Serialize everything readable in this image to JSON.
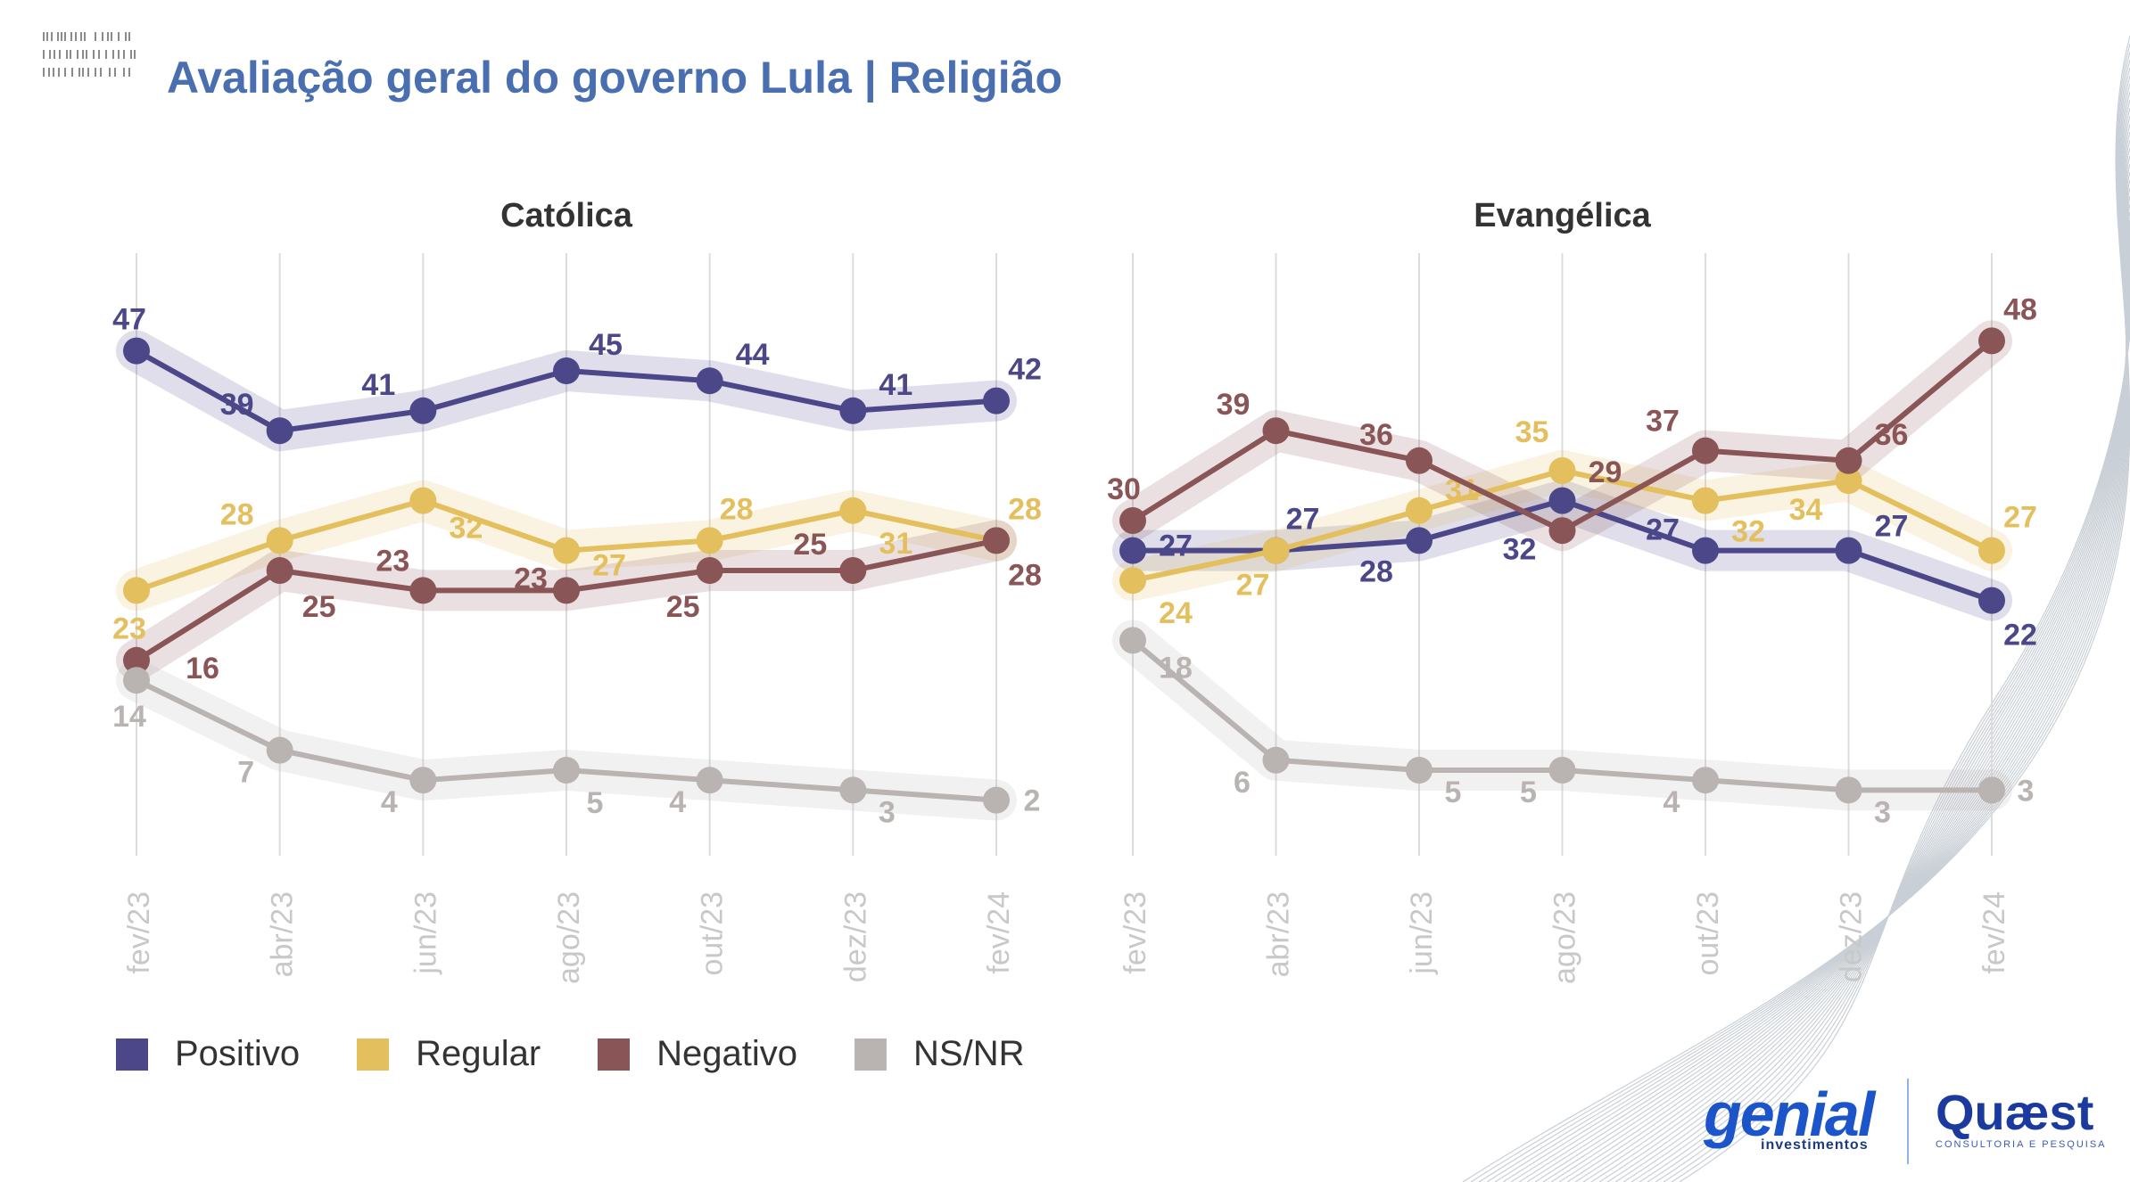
{
  "title": "Avaliação geral do governo Lula | Religião",
  "colors": {
    "positivo": "#4b4789",
    "regular": "#e3bf5e",
    "negativo": "#8a5557",
    "nsnr": "#b9b3b2",
    "title": "#4a6fb0"
  },
  "legend": [
    {
      "label": "Positivo",
      "color": "#4b4789"
    },
    {
      "label": "Regular",
      "color": "#e3bf5e"
    },
    {
      "label": "Negativo",
      "color": "#8a5557"
    },
    {
      "label": "NS/NR",
      "color": "#b9b3b2"
    }
  ],
  "logos": {
    "genial": "genial",
    "genial_sub": "investimentos",
    "quaest": "Quæst",
    "quaest_sub": "CONSULTORIA E PESQUISA"
  },
  "chart_data": [
    {
      "type": "line",
      "title": "Católica",
      "x": [
        "fev/23",
        "abr/23",
        "jun/23",
        "ago/23",
        "out/23",
        "dez/23",
        "fev/24"
      ],
      "ylim": [
        0,
        50
      ],
      "grid": "vertical",
      "series": [
        {
          "name": "Positivo",
          "values": [
            47,
            39,
            41,
            45,
            44,
            41,
            42
          ]
        },
        {
          "name": "Regular",
          "values": [
            23,
            28,
            32,
            27,
            28,
            31,
            28
          ]
        },
        {
          "name": "Negativo",
          "values": [
            16,
            25,
            23,
            23,
            25,
            25,
            28
          ]
        },
        {
          "name": "NS/NR",
          "values": [
            14,
            7,
            4,
            5,
            4,
            3,
            2
          ]
        }
      ]
    },
    {
      "type": "line",
      "title": "Evangélica",
      "x": [
        "fev/23",
        "abr/23",
        "jun/23",
        "ago/23",
        "out/23",
        "dez/23",
        "fev/24"
      ],
      "ylim": [
        0,
        50
      ],
      "grid": "vertical",
      "series": [
        {
          "name": "Positivo",
          "values": [
            27,
            27,
            28,
            32,
            27,
            27,
            22
          ]
        },
        {
          "name": "Regular",
          "values": [
            24,
            27,
            31,
            35,
            32,
            34,
            27
          ]
        },
        {
          "name": "Negativo",
          "values": [
            30,
            39,
            36,
            29,
            37,
            36,
            48
          ]
        },
        {
          "name": "NS/NR",
          "values": [
            18,
            6,
            5,
            5,
            4,
            3,
            3
          ]
        }
      ]
    }
  ]
}
